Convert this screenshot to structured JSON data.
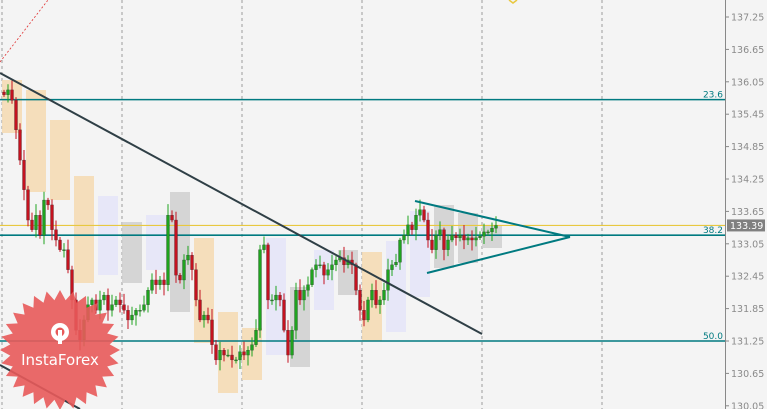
{
  "chart_data": {
    "type": "candlestick",
    "title": "",
    "y_axis": {
      "range": [
        130.05,
        137.55
      ],
      "ticks": [
        "137.25",
        "136.65",
        "136.05",
        "135.45",
        "134.85",
        "134.25",
        "133.65",
        "133.05",
        "132.45",
        "131.85",
        "131.25",
        "130.65",
        "130.05"
      ],
      "position": "right"
    },
    "grid": {
      "vertical": true,
      "horizontal": false,
      "style": "dashed"
    },
    "current_price": {
      "label": "133.39",
      "value": 133.39,
      "color": "#808080"
    },
    "closes": [
      135.81,
      135.9,
      135.71,
      135.16,
      134.6,
      134.05,
      133.49,
      133.31,
      133.58,
      133.21,
      133.86,
      133.77,
      133.31,
      133.12,
      132.94,
      132.94,
      132.57,
      132.01,
      131.45,
      131.27,
      131.64,
      131.92,
      132.01,
      131.82,
      132.01,
      132.1,
      131.82,
      131.92,
      132.01,
      131.92,
      131.82,
      131.64,
      131.73,
      131.82,
      131.82,
      131.92,
      132.19,
      132.38,
      132.29,
      132.38,
      132.29,
      133.58,
      133.49,
      132.47,
      132.38,
      132.75,
      132.84,
      132.57,
      132.01,
      131.64,
      131.73,
      131.64,
      131.18,
      130.9,
      131.08,
      130.99,
      130.99,
      130.9,
      130.9,
      131.05,
      130.99,
      131.08,
      131.18,
      131.45,
      132.94,
      133.03,
      132.01,
      132.01,
      132.1,
      132.01,
      131.45,
      130.99,
      131.45,
      132.19,
      132.01,
      132.19,
      132.29,
      132.57,
      132.66,
      132.66,
      132.47,
      132.57,
      132.66,
      132.75,
      132.79,
      132.66,
      132.75,
      132.66,
      132.19,
      131.82,
      131.64,
      132.01,
      132.19,
      131.92,
      132.01,
      132.19,
      132.57,
      132.66,
      132.71,
      133.12,
      133.21,
      133.4,
      133.31,
      133.58,
      133.68,
      133.49,
      133.12,
      132.94,
      133.21,
      133.31,
      132.94,
      133.12,
      133.21,
      133.16,
      133.21,
      133.12,
      133.16,
      133.12,
      133.16,
      133.19,
      133.27,
      133.27,
      133.34,
      133.39
    ],
    "fibonacci_levels": [
      {
        "label": "23.6",
        "price": 135.72
      },
      {
        "label": "38.2",
        "price": 133.21
      },
      {
        "label": "50.0",
        "price": 131.25
      }
    ],
    "yellow_level": 133.39,
    "colors": {
      "bull": "#1fa31f",
      "bear": "#c4121f",
      "fib": "#007a80",
      "trend": "#2f3f46",
      "yellow": "#e8c840",
      "background": "#f4f4f4"
    }
  },
  "watermark": {
    "text": "InstaForex",
    "color": "#e85a5a"
  }
}
